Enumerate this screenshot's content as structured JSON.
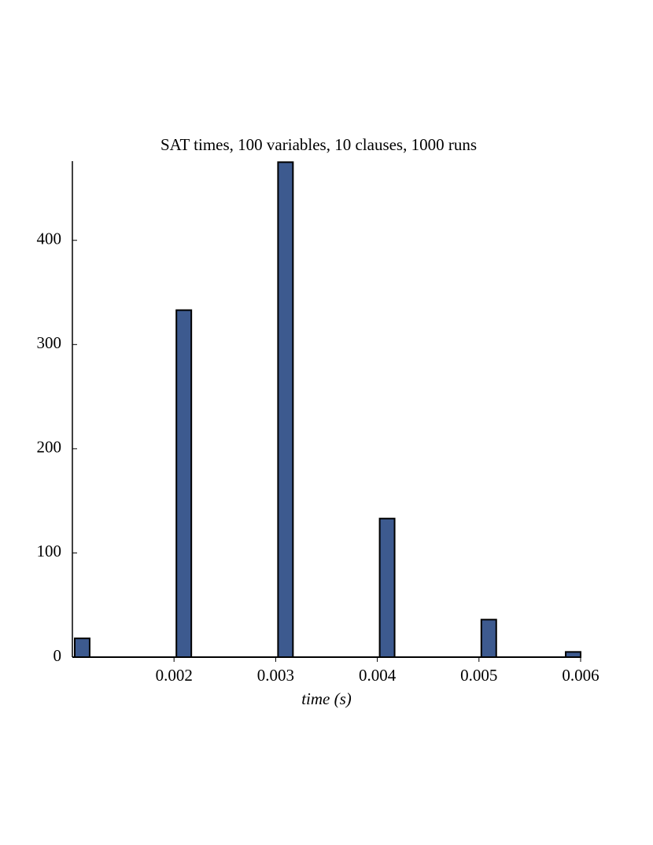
{
  "chart_data": {
    "type": "histogram",
    "title": "SAT times, 100 variables, 10 clauses, 1000 runs",
    "x_label": "time (s)",
    "bins": [
      0.001,
      0.00117,
      0.00133,
      0.0015,
      0.00167,
      0.00183,
      0.002,
      0.00217,
      0.00233,
      0.0025,
      0.00267,
      0.00283,
      0.003,
      0.00317,
      0.00333,
      0.0035,
      0.00367,
      0.00383,
      0.004,
      0.00417,
      0.00433,
      0.0045,
      0.00467,
      0.00483,
      0.005,
      0.00517,
      0.00533,
      0.0055,
      0.00567,
      0.00583,
      0.006
    ],
    "values": [
      18,
      0,
      0,
      0,
      0,
      0,
      333,
      0,
      0,
      0,
      0,
      0,
      475,
      0,
      0,
      0,
      0,
      0,
      133,
      0,
      0,
      0,
      0,
      0,
      36,
      0,
      0,
      0,
      0,
      5
    ],
    "color": "#3d5a8f",
    "xlim": [
      0.001,
      0.006
    ],
    "xticks": [
      0.002,
      0.003,
      0.004,
      0.005,
      0.006
    ],
    "ylim": [
      0,
      476
    ],
    "yticks": [
      0,
      100,
      200,
      300,
      400
    ]
  }
}
